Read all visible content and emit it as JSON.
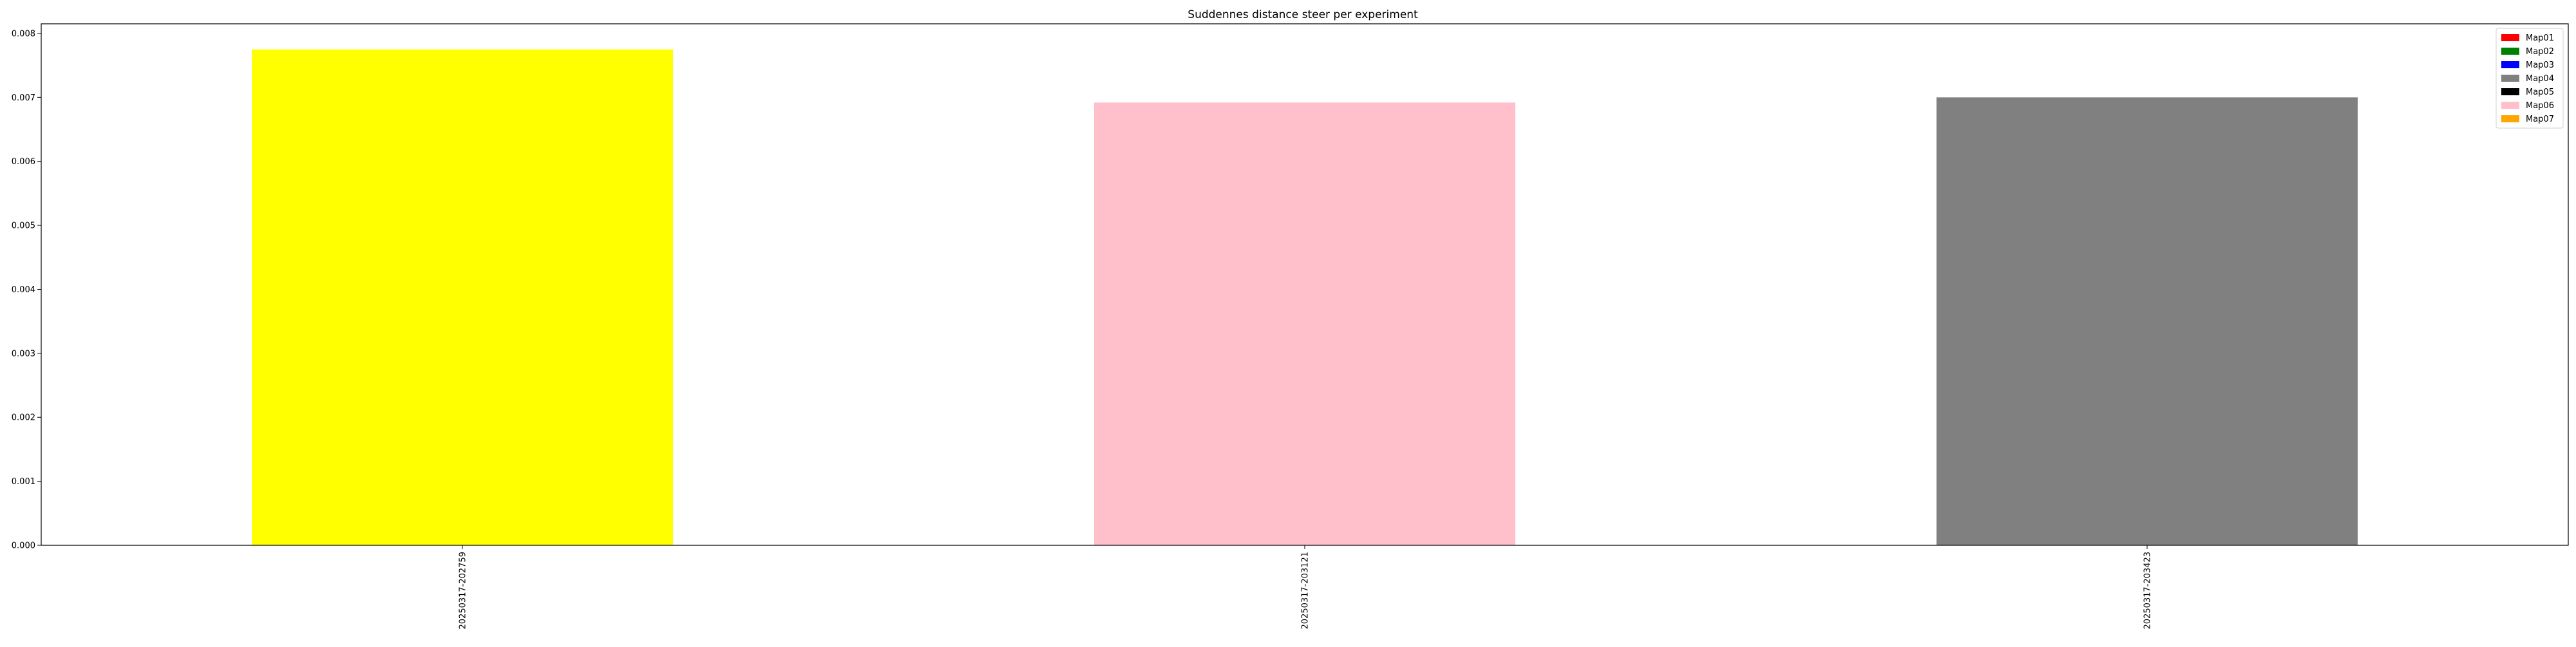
{
  "chart_data": {
    "type": "bar",
    "title": "Suddennes distance steer per experiment",
    "xlabel": "",
    "ylabel": "",
    "categories": [
      "20250317-202759",
      "20250317-203121",
      "20250317-203423"
    ],
    "values": [
      0.00775,
      0.00692,
      0.007
    ],
    "bar_colors": [
      "#ffff00",
      "#ffc0cb",
      "#808080"
    ],
    "ylim": [
      0,
      0.00815
    ],
    "yticks": [
      0.0,
      0.001,
      0.002,
      0.003,
      0.004,
      0.005,
      0.006,
      0.007,
      0.008
    ],
    "ytick_labels": [
      "0.000",
      "0.001",
      "0.002",
      "0.003",
      "0.004",
      "0.005",
      "0.006",
      "0.007",
      "0.008"
    ],
    "grid": false,
    "legend": {
      "placement": "top-right",
      "entries": [
        {
          "label": "Map01",
          "color": "#ff0000"
        },
        {
          "label": "Map02",
          "color": "#008000"
        },
        {
          "label": "Map03",
          "color": "#0000ff"
        },
        {
          "label": "Map04",
          "color": "#808080"
        },
        {
          "label": "Map05",
          "color": "#000000"
        },
        {
          "label": "Map06",
          "color": "#ffc0cb"
        },
        {
          "label": "Map07",
          "color": "#ffa500"
        }
      ]
    }
  }
}
